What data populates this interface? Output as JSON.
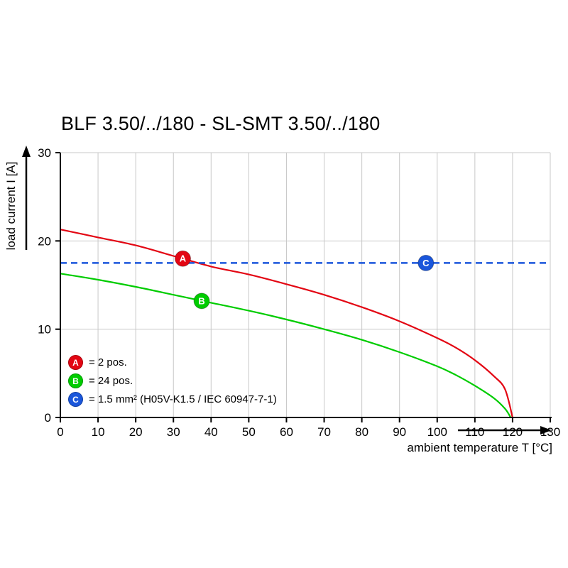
{
  "title": "BLF 3.50/../180 - SL-SMT 3.50/../180",
  "y_axis": {
    "label": "load current I [A]",
    "ticks": [
      0,
      10,
      20,
      30
    ]
  },
  "x_axis": {
    "label": "ambient temperature T [°C]",
    "ticks": [
      0,
      10,
      20,
      30,
      40,
      50,
      60,
      70,
      80,
      90,
      100,
      110,
      120,
      130
    ]
  },
  "legend": [
    {
      "id": "A",
      "label": "= 2 pos.",
      "color": "#e30613"
    },
    {
      "id": "B",
      "label": "= 24 pos.",
      "color": "#00cc00"
    },
    {
      "id": "C",
      "label": "= 1.5 mm² (H05V-K1.5 / IEC 60947-7-1)",
      "color": "#1a56db"
    }
  ],
  "colors": {
    "grid": "#c8c8c8",
    "axis": "#000000"
  },
  "chart_data": {
    "type": "line",
    "title": "BLF 3.50/../180 - SL-SMT 3.50/../180",
    "xlabel": "ambient temperature T [°C]",
    "ylabel": "load current I [A]",
    "xlim": [
      0,
      130
    ],
    "ylim": [
      0,
      30
    ],
    "x_ticks": [
      0,
      10,
      20,
      30,
      40,
      50,
      60,
      70,
      80,
      90,
      100,
      110,
      120,
      130
    ],
    "y_ticks": [
      0,
      10,
      20,
      30
    ],
    "grid": true,
    "legend_position": "inside-bottom-left",
    "series": [
      {
        "name": "A = 2 pos.",
        "color": "#e30613",
        "style": "solid",
        "points": [
          [
            0,
            21.3
          ],
          [
            10,
            20.4
          ],
          [
            20,
            19.5
          ],
          [
            30,
            18.3
          ],
          [
            40,
            17.1
          ],
          [
            50,
            16.2
          ],
          [
            60,
            15.1
          ],
          [
            70,
            13.9
          ],
          [
            80,
            12.5
          ],
          [
            90,
            10.9
          ],
          [
            100,
            9.0
          ],
          [
            105,
            7.9
          ],
          [
            110,
            6.5
          ],
          [
            115,
            4.7
          ],
          [
            118,
            3.2
          ],
          [
            120,
            0
          ]
        ]
      },
      {
        "name": "B = 24 pos.",
        "color": "#00cc00",
        "style": "solid",
        "points": [
          [
            0,
            16.3
          ],
          [
            10,
            15.6
          ],
          [
            20,
            14.8
          ],
          [
            30,
            13.9
          ],
          [
            40,
            13.0
          ],
          [
            50,
            12.1
          ],
          [
            60,
            11.1
          ],
          [
            70,
            10.0
          ],
          [
            80,
            8.8
          ],
          [
            90,
            7.4
          ],
          [
            100,
            5.8
          ],
          [
            105,
            4.8
          ],
          [
            110,
            3.6
          ],
          [
            115,
            2.2
          ],
          [
            118,
            1.0
          ],
          [
            119.5,
            0
          ]
        ]
      },
      {
        "name": "C = 1.5 mm² (H05V-K1.5 / IEC 60947-7-1)",
        "color": "#1a56db",
        "style": "dashed",
        "points": [
          [
            0,
            17.5
          ],
          [
            130,
            17.5
          ]
        ]
      }
    ],
    "markers": [
      {
        "id": "A",
        "x": 32.5,
        "y": 18.0,
        "color": "#e30613"
      },
      {
        "id": "B",
        "x": 37.5,
        "y": 13.2,
        "color": "#00cc00"
      },
      {
        "id": "C",
        "x": 97,
        "y": 17.5,
        "color": "#1a56db"
      }
    ]
  }
}
